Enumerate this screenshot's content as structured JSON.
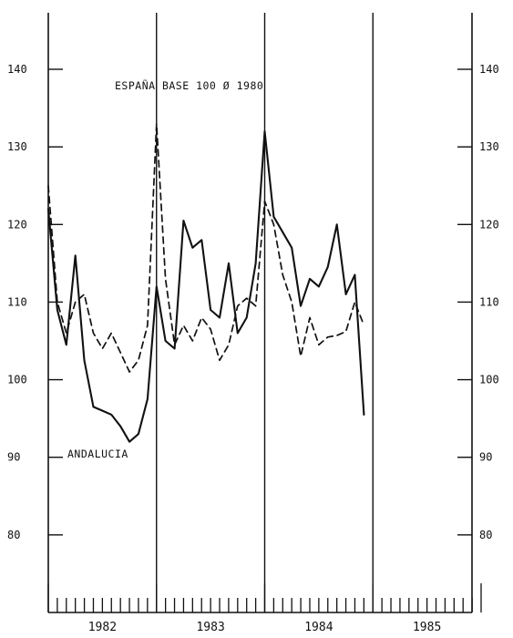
{
  "chart_data": {
    "type": "line",
    "title": "",
    "xlabel": "",
    "ylabel": "",
    "ylim": [
      70,
      150
    ],
    "yticks": [
      80,
      90,
      100,
      110,
      120,
      130,
      140
    ],
    "xlim": [
      1981.5,
      1985.5
    ],
    "years": [
      "1982",
      "1983",
      "1984",
      "1985"
    ],
    "year_dividers": [
      1982.5,
      1983.5,
      1984.5
    ],
    "grid": false,
    "annotations": {
      "espana": "ESPAÑA BASE 100 Ø 1980",
      "andalucia": "ANDALUCIA"
    },
    "series": [
      {
        "name": "ESPAÑA",
        "style": "dashed",
        "color": "#111111",
        "x": [
          1981.5,
          1981.583,
          1981.667,
          1981.75,
          1981.833,
          1981.917,
          1982.0,
          1982.083,
          1982.167,
          1982.25,
          1982.333,
          1982.417,
          1982.5,
          1982.583,
          1982.667,
          1982.75,
          1982.833,
          1982.917,
          1983.0,
          1983.083,
          1983.167,
          1983.25,
          1983.333,
          1983.417,
          1983.5,
          1983.583,
          1983.667,
          1983.75,
          1983.833,
          1983.917,
          1984.0,
          1984.083,
          1984.167,
          1984.25,
          1984.333,
          1984.417
        ],
        "values": [
          125,
          110,
          106,
          110,
          111,
          106,
          104,
          106,
          103.5,
          101,
          102.5,
          107,
          133,
          113,
          104.5,
          107,
          105,
          108,
          106.5,
          102.5,
          104.5,
          109.5,
          110.5,
          109.5,
          123,
          120,
          113.5,
          110,
          103,
          108,
          104.5,
          105.5,
          105.7,
          106.2,
          110,
          107
        ]
      },
      {
        "name": "ANDALUCIA",
        "style": "solid",
        "color": "#111111",
        "x": [
          1981.5,
          1981.583,
          1981.667,
          1981.75,
          1981.833,
          1981.917,
          1982.0,
          1982.083,
          1982.167,
          1982.25,
          1982.333,
          1982.417,
          1982.5,
          1982.583,
          1982.667,
          1982.75,
          1982.833,
          1982.917,
          1983.0,
          1983.083,
          1983.167,
          1983.25,
          1983.333,
          1983.417,
          1983.5,
          1983.583,
          1983.667,
          1983.75,
          1983.833,
          1983.917,
          1984.0,
          1984.083,
          1984.167,
          1984.25,
          1984.333,
          1984.417
        ],
        "values": [
          122,
          109,
          104.5,
          116,
          102.5,
          96.5,
          96,
          95.5,
          94,
          92,
          93,
          97.5,
          112,
          105,
          104,
          120.5,
          117,
          118,
          109,
          108,
          115,
          106,
          108,
          115,
          132,
          121,
          119,
          117,
          109.5,
          113,
          112,
          114.5,
          120,
          111,
          113.5,
          95.5
        ]
      }
    ]
  }
}
